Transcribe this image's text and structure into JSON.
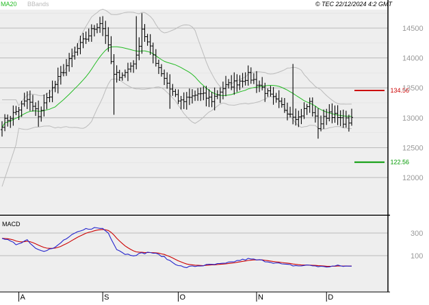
{
  "header": {
    "ma_label": "MA20",
    "bbands_label": "BBands",
    "copyright": "© TEC 22/12/2024 4:2 GMT"
  },
  "colors": {
    "background": "#ffffff",
    "panel_fill": "#eeeeee",
    "grid_line": "#aaaaaa",
    "border": "#000000",
    "candles": "#000000",
    "ma20": "#22bb22",
    "bbands": "#bbbbbb",
    "macd_line": "#2222cc",
    "signal_line": "#cc0000",
    "resistance": "#cc0000",
    "support": "#009900",
    "axis_text": "#999999"
  },
  "chart_data": [
    {
      "type": "candlestick",
      "name": "price",
      "y_ticks": [
        12000,
        12500,
        13000,
        13500,
        14000,
        14500
      ],
      "y_tick_labels": [
        "12000",
        "12500",
        "13000",
        "13500",
        "14000",
        "14500"
      ],
      "x_ticks": [
        {
          "label": "A",
          "index": 6
        },
        {
          "label": "S",
          "index": 36
        },
        {
          "label": "O",
          "index": 63
        },
        {
          "label": "N",
          "index": 91
        },
        {
          "label": "D",
          "index": 116
        }
      ],
      "levels": [
        {
          "label": "134.56",
          "value": 13456,
          "color": "#cc0000",
          "label_color": "#cc0000"
        },
        {
          "label": "122.56",
          "value": 12256,
          "color": "#009900",
          "label_color": "#009900"
        }
      ],
      "grid": true,
      "series": [
        {
          "name": "MA20",
          "color": "#22bb22"
        },
        {
          "name": "BBands",
          "color": "#bbbbbb"
        }
      ]
    },
    {
      "type": "line",
      "name": "MACD",
      "label": "MACD",
      "y_ticks": [
        100,
        300
      ],
      "y_tick_labels": [
        "100",
        "300"
      ],
      "ylim": [
        -100,
        400
      ],
      "grid": true
    }
  ]
}
